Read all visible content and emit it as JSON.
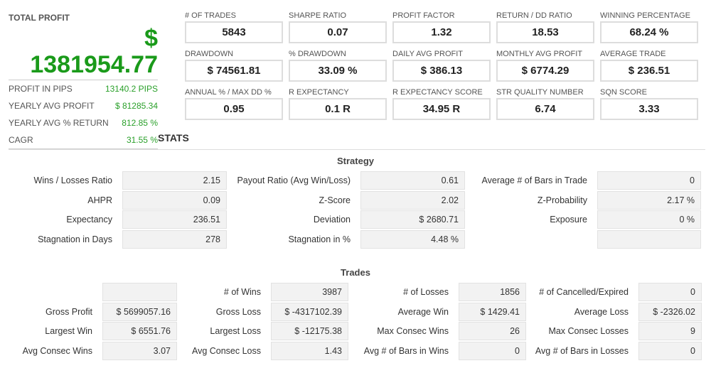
{
  "summary": {
    "title": "TOTAL PROFIT",
    "currency": "$",
    "total": "1381954.77",
    "rows": [
      {
        "label": "PROFIT IN PIPS",
        "value": "13140.2 PIPS"
      },
      {
        "label": "YEARLY AVG PROFIT",
        "value": "$ 81285.34"
      },
      {
        "label": "YEARLY AVG % RETURN",
        "value": "812.85 %"
      },
      {
        "label": "CAGR",
        "value": "31.55 %"
      }
    ]
  },
  "metrics": [
    {
      "label": "# of Trades",
      "value": "5843"
    },
    {
      "label": "Sharpe Ratio",
      "value": "0.07"
    },
    {
      "label": "Profit Factor",
      "value": "1.32"
    },
    {
      "label": "Return / DD Ratio",
      "value": "18.53"
    },
    {
      "label": "Winning Percentage",
      "value": "68.24 %"
    },
    {
      "label": "Drawdown",
      "value": "$ 74561.81"
    },
    {
      "label": "% Drawdown",
      "value": "33.09 %"
    },
    {
      "label": "Daily Avg Profit",
      "value": "$ 386.13"
    },
    {
      "label": "Monthly Avg Profit",
      "value": "$ 6774.29"
    },
    {
      "label": "Average Trade",
      "value": "$ 236.51"
    },
    {
      "label": "Annual % / Max DD %",
      "value": "0.95"
    },
    {
      "label": "R Expectancy",
      "value": "0.1 R"
    },
    {
      "label": "R Expectancy Score",
      "value": "34.95 R"
    },
    {
      "label": "STR Quality Number",
      "value": "6.74"
    },
    {
      "label": "SQN Score",
      "value": "3.33"
    }
  ],
  "stats_title": "STATS",
  "strategy": {
    "title": "Strategy",
    "cells": [
      [
        "Wins / Losses Ratio",
        "2.15"
      ],
      [
        "Payout Ratio (Avg Win/Loss)",
        "0.61"
      ],
      [
        "Average # of Bars in Trade",
        "0"
      ],
      [
        "AHPR",
        "0.09"
      ],
      [
        "Z-Score",
        "2.02"
      ],
      [
        "Z-Probability",
        "2.17 %"
      ],
      [
        "Expectancy",
        "236.51"
      ],
      [
        "Deviation",
        "$ 2680.71"
      ],
      [
        "Exposure",
        "0 %"
      ],
      [
        "Stagnation in Days",
        "278"
      ],
      [
        "Stagnation in %",
        "4.48 %"
      ],
      [
        "",
        ""
      ]
    ]
  },
  "trades": {
    "title": "Trades",
    "cells": [
      [
        "",
        ""
      ],
      [
        "# of Wins",
        "3987"
      ],
      [
        "# of Losses",
        "1856"
      ],
      [
        "# of Cancelled/Expired",
        "0"
      ],
      [
        "Gross Profit",
        "$ 5699057.16"
      ],
      [
        "Gross Loss",
        "$ -4317102.39"
      ],
      [
        "Average Win",
        "$ 1429.41"
      ],
      [
        "Average Loss",
        "$ -2326.02"
      ],
      [
        "Largest Win",
        "$ 6551.76"
      ],
      [
        "Largest Loss",
        "$ -12175.38"
      ],
      [
        "Max Consec Wins",
        "26"
      ],
      [
        "Max Consec Losses",
        "9"
      ],
      [
        "Avg Consec Wins",
        "3.07"
      ],
      [
        "Avg Consec Loss",
        "1.43"
      ],
      [
        "Avg # of Bars in Wins",
        "0"
      ],
      [
        "Avg # of Bars in Losses",
        "0"
      ]
    ]
  }
}
